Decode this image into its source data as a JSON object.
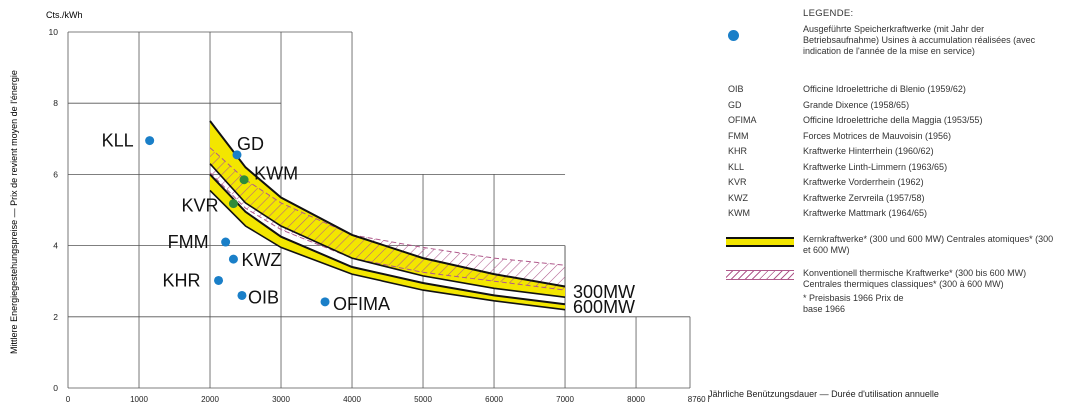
{
  "chart_data": {
    "type": "scatter",
    "y_unit": "Cts./kWh",
    "ylabel": "Mittlere Energiegestehungspreise  —  Prix de revient moyen de l'énergie",
    "xlabel": "Jährliche Benützungsdauer — Durée d'utilisation annuelle",
    "x_ticks": [
      "0",
      "1000",
      "2000",
      "3000",
      "4000",
      "5000",
      "6000",
      "7000",
      "8000",
      "8760 h"
    ],
    "y_ticks": [
      "0",
      "2",
      "4",
      "6",
      "8",
      "10"
    ],
    "xlim": [
      0,
      8760
    ],
    "ylim": [
      0,
      10
    ],
    "point_color": "#1a7fc8",
    "points": [
      {
        "label": "KLL",
        "x": 1150,
        "y": 6.95,
        "color": "#1a7fc8"
      },
      {
        "label": "GD",
        "x": 2380,
        "y": 6.55,
        "color": "#1a7fc8"
      },
      {
        "label": "KWM",
        "x": 2480,
        "y": 5.85,
        "color": "#2e8b3a"
      },
      {
        "label": "KVR",
        "x": 2330,
        "y": 5.18,
        "color": "#2e8b3a"
      },
      {
        "label": "FMM",
        "x": 2220,
        "y": 4.1,
        "color": "#1a7fc8"
      },
      {
        "label": "KWZ",
        "x": 2330,
        "y": 3.62,
        "color": "#1a7fc8"
      },
      {
        "label": "KHR",
        "x": 2120,
        "y": 3.02,
        "color": "#1a7fc8"
      },
      {
        "label": "OIB",
        "x": 2450,
        "y": 2.6,
        "color": "#1a7fc8"
      },
      {
        "label": "OFIMA",
        "x": 3620,
        "y": 2.42,
        "color": "#1a7fc8"
      }
    ],
    "bands": [
      {
        "name": "300MW",
        "type": "nuclear",
        "x": [
          2000,
          2500,
          3000,
          4000,
          5000,
          6000,
          7000
        ],
        "upper": [
          7.5,
          6.2,
          5.35,
          4.3,
          3.65,
          3.2,
          2.85
        ],
        "lower": [
          6.3,
          5.2,
          4.55,
          3.65,
          3.15,
          2.8,
          2.55
        ]
      },
      {
        "name": "600MW",
        "type": "nuclear",
        "x": [
          2000,
          2500,
          3000,
          4000,
          5000,
          6000,
          7000
        ],
        "upper": [
          6.0,
          4.95,
          4.25,
          3.4,
          2.95,
          2.6,
          2.35
        ],
        "lower": [
          5.55,
          4.55,
          3.95,
          3.2,
          2.75,
          2.45,
          2.2
        ]
      },
      {
        "name": "",
        "type": "thermal",
        "x": [
          2000,
          2500,
          3000,
          4000,
          5000,
          6000,
          7000
        ],
        "upper": [
          6.75,
          5.85,
          5.2,
          4.3,
          3.95,
          3.65,
          3.45
        ],
        "lower": [
          6.05,
          5.05,
          4.45,
          3.65,
          3.25,
          3.0,
          2.75
        ]
      }
    ],
    "colors": {
      "nuclear_fill": "#f3e600",
      "thermal_hatch": "#b05a8c",
      "grid": "#555555",
      "line": "#111111"
    }
  },
  "legend": {
    "title": "LEGENDE:",
    "marker_desc": "Ausgeführte Speicherkraftwerke (mit Jahr der Betriebsaufnahme) Usines à accumulation réalisées (avec indication de l'année de la mise en service)",
    "entries": [
      {
        "abbr": "OIB",
        "desc": "Officine Idroelettriche di Blenio (1959/62)"
      },
      {
        "abbr": "GD",
        "desc": "Grande Dixence (1958/65)"
      },
      {
        "abbr": "OFIMA",
        "desc": "Officine Idroelettriche della Maggia (1953/55)"
      },
      {
        "abbr": "FMM",
        "desc": "Forces Motrices de Mauvoisin (1956)"
      },
      {
        "abbr": "KHR",
        "desc": "Kraftwerke Hinterrhein (1960/62)"
      },
      {
        "abbr": "KLL",
        "desc": "Kraftwerke Linth-Limmern (1963/65)"
      },
      {
        "abbr": "KVR",
        "desc": "Kraftwerke Vorderrhein (1962)"
      },
      {
        "abbr": "KWZ",
        "desc": "Kraftwerke Zervreila (1957/58)"
      },
      {
        "abbr": "KWM",
        "desc": "Kraftwerke Mattmark (1964/65)"
      }
    ],
    "nuclear_desc": "Kernkraftwerke* (300 und 600 MW) Centrales atomiques* (300 et 600 MW)",
    "thermal_desc": "Konventionell thermische Kraftwerke* (300 bis 600 MW) Centrales thermiques classiques* (300 à 600 MW)",
    "footnote": "* Preisbasis 1966 Prix de base 1966"
  }
}
